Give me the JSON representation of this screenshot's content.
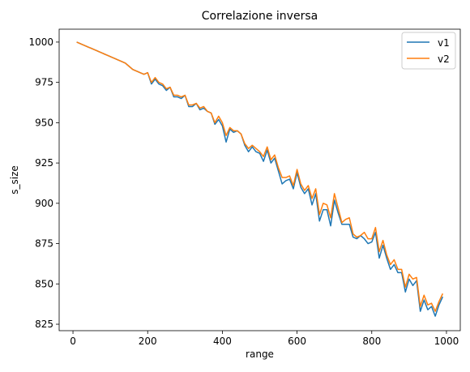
{
  "chart_data": {
    "type": "line",
    "title": "Correlazione inversa",
    "xlabel": "range",
    "ylabel": "s_size",
    "xlim": [
      -37,
      1037
    ],
    "ylim": [
      821,
      1008
    ],
    "xticks": [
      0,
      200,
      400,
      600,
      800,
      1000
    ],
    "yticks": [
      825,
      850,
      875,
      900,
      925,
      950,
      975,
      1000
    ],
    "x": [
      10,
      20,
      30,
      40,
      50,
      60,
      70,
      80,
      90,
      100,
      110,
      120,
      130,
      140,
      150,
      160,
      170,
      180,
      190,
      200,
      210,
      220,
      230,
      240,
      250,
      260,
      270,
      280,
      290,
      300,
      310,
      320,
      330,
      340,
      350,
      360,
      370,
      380,
      390,
      400,
      410,
      420,
      430,
      440,
      450,
      460,
      470,
      480,
      490,
      500,
      510,
      520,
      530,
      540,
      550,
      560,
      570,
      580,
      590,
      600,
      610,
      620,
      630,
      640,
      650,
      660,
      670,
      680,
      690,
      700,
      710,
      720,
      730,
      740,
      750,
      760,
      770,
      780,
      790,
      800,
      810,
      820,
      830,
      840,
      850,
      860,
      870,
      880,
      890,
      900,
      910,
      920,
      930,
      940,
      950,
      960,
      970,
      980,
      990
    ],
    "series": [
      {
        "name": "v1",
        "color": "#1f77b4",
        "values": [
          1000,
          999,
          998,
          997,
          996,
          995,
          994,
          993,
          992,
          991,
          990,
          989,
          988,
          987,
          985,
          983,
          982,
          981,
          980,
          981,
          974,
          977,
          974,
          973,
          970,
          972,
          966,
          966,
          965,
          967,
          960,
          960,
          962,
          958,
          959,
          957,
          956,
          949,
          952,
          948,
          938,
          946,
          944,
          945,
          943,
          936,
          932,
          935,
          932,
          931,
          926,
          933,
          925,
          928,
          920,
          912,
          914,
          915,
          909,
          919,
          910,
          906,
          909,
          899,
          906,
          889,
          896,
          896,
          886,
          902,
          894,
          887,
          887,
          887,
          879,
          878,
          880,
          878,
          875,
          876,
          882,
          866,
          874,
          866,
          859,
          862,
          857,
          857,
          845,
          853,
          849,
          852,
          833,
          840,
          834,
          836,
          830,
          837,
          842
        ]
      },
      {
        "name": "v2",
        "color": "#ff7f0e",
        "values": [
          1000,
          999,
          998,
          997,
          996,
          995,
          994,
          993,
          992,
          991,
          990,
          989,
          988,
          987,
          985,
          983,
          982,
          981,
          980,
          981,
          975,
          978,
          975,
          974,
          971,
          972,
          967,
          967,
          966,
          967,
          961,
          961,
          962,
          959,
          960,
          957,
          956,
          950,
          954,
          950,
          942,
          947,
          945,
          945,
          943,
          937,
          934,
          936,
          934,
          932,
          929,
          935,
          927,
          930,
          922,
          916,
          916,
          917,
          911,
          921,
          912,
          908,
          911,
          903,
          909,
          893,
          900,
          899,
          891,
          906,
          897,
          888,
          890,
          891,
          881,
          879,
          880,
          882,
          878,
          878,
          885,
          870,
          877,
          868,
          862,
          865,
          859,
          859,
          848,
          856,
          853,
          854,
          836,
          843,
          837,
          838,
          833,
          839,
          844
        ]
      }
    ],
    "legend": {
      "position": "top-right",
      "entries": [
        "v1",
        "v2"
      ]
    },
    "grid": false
  }
}
